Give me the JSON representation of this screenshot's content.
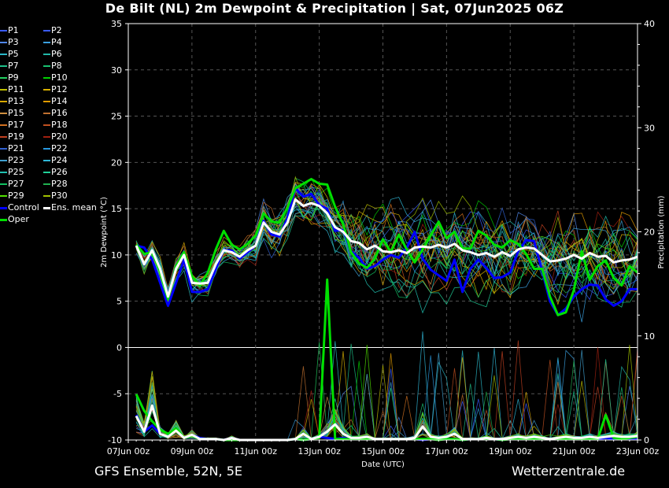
{
  "title": "De Bilt  (NL)  2m Dewpoint & Precipitation | Sat, 07Jun2025 06Z",
  "footer": {
    "left": "GFS Ensemble, 52N, 5E",
    "right": "Wetterzentrale.de"
  },
  "legend": [
    {
      "label": "P1",
      "color": "#3a5cff"
    },
    {
      "label": "P2",
      "color": "#3a5cff"
    },
    {
      "label": "P3",
      "color": "#4f86e8"
    },
    {
      "label": "P4",
      "color": "#3aa0e0"
    },
    {
      "label": "P5",
      "color": "#2ab8c8"
    },
    {
      "label": "P6",
      "color": "#22b8a8"
    },
    {
      "label": "P7",
      "color": "#1ec08a"
    },
    {
      "label": "P8",
      "color": "#18c070"
    },
    {
      "label": "P9",
      "color": "#22d060"
    },
    {
      "label": "P10",
      "color": "#00d000"
    },
    {
      "label": "P11",
      "color": "#c0c000"
    },
    {
      "label": "P12",
      "color": "#d8b000"
    },
    {
      "label": "P13",
      "color": "#d8a800"
    },
    {
      "label": "P14",
      "color": "#e09a00"
    },
    {
      "label": "P15",
      "color": "#d09040"
    },
    {
      "label": "P16",
      "color": "#c07030"
    },
    {
      "label": "P17",
      "color": "#d07020"
    },
    {
      "label": "P18",
      "color": "#c05020"
    },
    {
      "label": "P19",
      "color": "#c04020"
    },
    {
      "label": "P20",
      "color": "#a02010"
    },
    {
      "label": "P21",
      "color": "#3060d0"
    },
    {
      "label": "P22",
      "color": "#2898e0"
    },
    {
      "label": "P23",
      "color": "#40a0d0"
    },
    {
      "label": "P24",
      "color": "#30b8d8"
    },
    {
      "label": "P25",
      "color": "#20c0b0"
    },
    {
      "label": "P26",
      "color": "#20d098"
    },
    {
      "label": "P27",
      "color": "#10c060"
    },
    {
      "label": "P28",
      "color": "#20b050"
    },
    {
      "label": "P29",
      "color": "#50e000"
    },
    {
      "label": "P30",
      "color": "#a0c000"
    },
    {
      "label": "Control",
      "color": "#0000ff"
    },
    {
      "label": "Ens. mean",
      "color": "#ffffff"
    },
    {
      "label": "Oper",
      "color": "#00e000"
    }
  ],
  "chart_data": {
    "type": "line",
    "title": "De Bilt  (NL)  2m Dewpoint & Precipitation | Sat, 07Jun2025 06Z",
    "xlabel": "Date (UTC)",
    "ylabel": "2m Dewpoint (°C)",
    "y2label": "Precipitation (mm)",
    "xlim": [
      "07Jun 00z",
      "23Jun 00z"
    ],
    "ylim": [
      -10,
      35
    ],
    "y2lim": [
      0,
      40
    ],
    "x_ticks": [
      "07Jun 00z",
      "09Jun 00z",
      "11Jun 00z",
      "13Jun 00z",
      "15Jun 00z",
      "17Jun 00z",
      "19Jun 00z",
      "21Jun 00z",
      "23Jun 00z"
    ],
    "y_ticks": [
      -10,
      -5,
      0,
      5,
      10,
      15,
      20,
      25,
      30,
      35
    ],
    "y2_ticks": [
      0,
      10,
      20,
      30,
      40
    ],
    "grid": true,
    "x_days": [
      0.25,
      0.5,
      0.75,
      1,
      1.25,
      1.5,
      1.75,
      2,
      2.25,
      2.5,
      2.75,
      3,
      3.25,
      3.5,
      3.75,
      4,
      4.25,
      4.5,
      4.75,
      5,
      5.25,
      5.5,
      5.75,
      6,
      6.25,
      6.5,
      6.75,
      7,
      7.25,
      7.5,
      7.75,
      8,
      8.25,
      8.5,
      8.75,
      9,
      9.25,
      9.5,
      9.75,
      10,
      10.25,
      10.5,
      10.75,
      11,
      11.25,
      11.5,
      11.75,
      12,
      12.25,
      12.5,
      12.75,
      13,
      13.25,
      13.5,
      13.75,
      14,
      14.25,
      14.5,
      14.75,
      15,
      15.25,
      15.5,
      15.75,
      16
    ],
    "dewpoint_series": [
      {
        "name": "Ens. mean",
        "values": [
          11,
          9,
          10.5,
          8.5,
          5.5,
          8.5,
          10,
          7,
          6.9,
          7,
          9,
          10.5,
          10.3,
          9.8,
          10.5,
          11,
          13.5,
          12.5,
          12.2,
          13.5,
          16,
          15.3,
          15.6,
          15.3,
          14.5,
          13,
          12.5,
          11.5,
          11.3,
          10.6,
          11,
          10.4,
          10.3,
          10.5,
          10.2,
          10.8,
          10.9,
          10.8,
          11.1,
          10.8,
          11.2,
          10.5,
          10.3,
          10,
          10.2,
          9.8,
          10.3,
          9.9,
          10.6,
          10.8,
          10.7,
          10,
          9.3,
          9.4,
          9.6,
          10,
          9.6,
          10.2,
          9.8,
          9.9,
          9.2,
          9.4,
          9.5,
          9.8
        ]
      },
      {
        "name": "Control",
        "values": [
          11,
          10.8,
          9.5,
          7,
          4.5,
          7,
          9.5,
          6,
          6,
          6.3,
          8.5,
          10.5,
          10.5,
          9.6,
          10.3,
          11,
          13.7,
          12.2,
          12,
          14,
          17.2,
          16.3,
          16.6,
          15.4,
          15,
          12.6,
          12.7,
          10.4,
          9.7,
          8.5,
          8.8,
          9.5,
          10,
          9.7,
          10.8,
          12.5,
          9.6,
          8.4,
          7.8,
          7.2,
          9.5,
          6,
          8.5,
          9.5,
          8.6,
          7.5,
          7.6,
          8.1,
          10.4,
          11.6,
          11.5,
          8.3,
          5,
          3.5,
          4.2,
          5.5,
          6.3,
          6.8,
          6.7,
          5.2,
          4.5,
          5,
          6.3,
          6.3
        ]
      },
      {
        "name": "Oper",
        "values": [
          11.1,
          10.1,
          10.3,
          8.2,
          5.2,
          8.8,
          10.3,
          7.7,
          6.7,
          8.1,
          10.6,
          12.6,
          11.1,
          10.6,
          11.2,
          12.1,
          14.5,
          13.6,
          13.5,
          15.1,
          17.2,
          17.7,
          18.2,
          17.7,
          17.6,
          15.2,
          13.3,
          10.3,
          9.1,
          8.6,
          9.6,
          11.7,
          10.3,
          12.2,
          10.6,
          9.2,
          10.6,
          12.1,
          13.6,
          11.8,
          12.5,
          10.7,
          10.7,
          12.6,
          12.1,
          11.1,
          10.8,
          11.6,
          11.2,
          10.1,
          8.5,
          8.5,
          5.5,
          3.5,
          3.8,
          6.2,
          10.4,
          7.3,
          8.8,
          9.4,
          7.5,
          6.7,
          8.8,
          8.1
        ]
      }
    ],
    "precip_series": [
      {
        "name": "Ens. mean",
        "values": [
          2.3,
          0.8,
          3.3,
          0.6,
          0.3,
          0.9,
          0.2,
          0.5,
          0.1,
          0.1,
          0.1,
          0,
          0.2,
          0,
          0,
          0,
          0,
          0,
          0,
          0,
          0.1,
          0.6,
          0.1,
          0.3,
          0.8,
          1.5,
          0.6,
          0.2,
          0.2,
          0.3,
          0.1,
          0.1,
          0.1,
          0.1,
          0.1,
          0.2,
          1.3,
          0.3,
          0.2,
          0.3,
          0.6,
          0.1,
          0.1,
          0.1,
          0.2,
          0.1,
          0.1,
          0.2,
          0.3,
          0.2,
          0.3,
          0.2,
          0.1,
          0.2,
          0.3,
          0.2,
          0.2,
          0.3,
          0.2,
          0.3,
          0.4,
          0.3,
          0.3,
          0.4
        ]
      },
      {
        "name": "Control",
        "values": [
          2.4,
          0.8,
          1.4,
          0.6,
          0.3,
          1,
          0.2,
          0.5,
          0.2,
          0.1,
          0.1,
          0,
          0.2,
          0,
          0,
          0,
          0,
          0,
          0,
          0,
          0.1,
          0,
          0.1,
          0.3,
          0.2,
          0.1,
          0.2,
          0.1,
          0.1,
          0.1,
          0.1,
          0.1,
          0.1,
          0.1,
          0.1,
          0.1,
          0,
          0.1,
          0.1,
          0.1,
          0.1,
          0,
          0.1,
          0.1,
          0.1,
          0.1,
          0,
          0.2,
          0.1,
          0.1,
          0.2,
          0.1,
          0.1,
          0.1,
          0.3,
          0.1,
          0.2,
          0.1,
          0.1,
          0.2,
          0.1,
          0.1,
          0.1,
          0.1
        ]
      },
      {
        "name": "Oper",
        "values": [
          4.4,
          2.8,
          1.8,
          1,
          0.6,
          1.1,
          0.2,
          0.4,
          0.1,
          0.1,
          0.1,
          0,
          0,
          0,
          0,
          0,
          0,
          0,
          0,
          0,
          0.1,
          0,
          0.1,
          0.2,
          15.4,
          0.1,
          0.1,
          0.1,
          0.1,
          0.1,
          0.1,
          0.1,
          0.1,
          0.1,
          0.1,
          0.1,
          0.1,
          0.1,
          0,
          0.1,
          0.1,
          0,
          0.1,
          0.1,
          0.1,
          0.1,
          0,
          0.1,
          0.1,
          0.1,
          0.1,
          0.1,
          0.1,
          0.1,
          0.1,
          0.1,
          0.1,
          0.1,
          0.1,
          2.4,
          0.2,
          0.1,
          0.2,
          0.3
        ]
      }
    ]
  }
}
